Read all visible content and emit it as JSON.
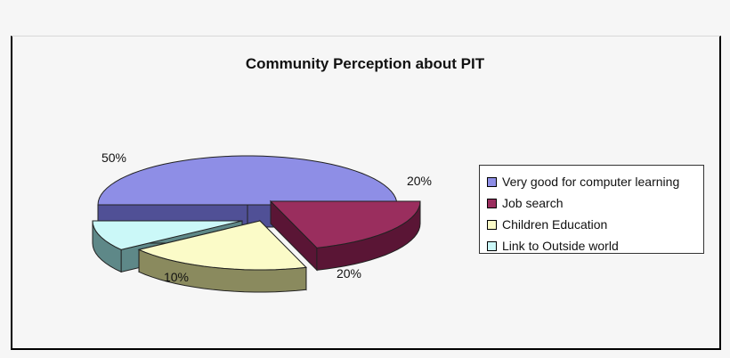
{
  "chart_data": {
    "type": "pie",
    "title": "Community Perception about PIT",
    "slices": [
      {
        "label": "Very good for computer learning",
        "value": 50,
        "display": "50%",
        "color": "#8e8ee6",
        "side": "#505096"
      },
      {
        "label": "Job search",
        "value": 20,
        "display": "20%",
        "color": "#9a2e5e",
        "side": "#5a1535"
      },
      {
        "label": "Children Education",
        "value": 20,
        "display": "20%",
        "color": "#fbfbc8",
        "side": "#8a8a5e"
      },
      {
        "label": "Link to Outside world",
        "value": 10,
        "display": "10%",
        "color": "#cbf8f8",
        "side": "#5e8888"
      }
    ],
    "legend_position": "right",
    "style": "3d-exploded"
  }
}
